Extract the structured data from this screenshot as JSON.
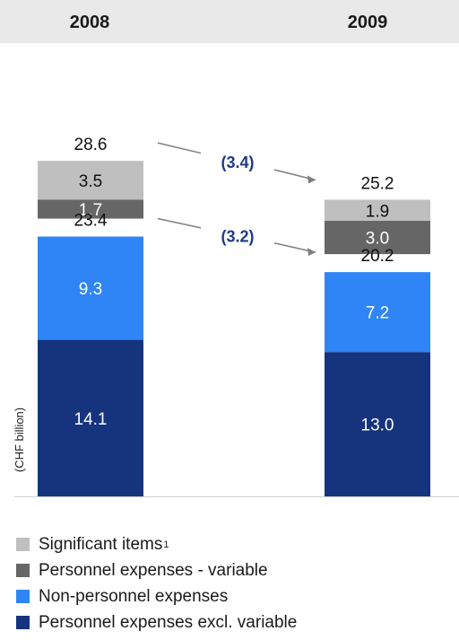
{
  "colors": {
    "significant": "#bfbfbf",
    "pers_var": "#666666",
    "non_personnel": "#2f85f5",
    "personnel_excl": "#16337e",
    "change_text": "#1f3a8a",
    "arrow": "#7f7f7f",
    "header_bg": "#e9e9e9"
  },
  "chart_data": {
    "type": "bar",
    "stacked": true,
    "categories": [
      "2008",
      "2009"
    ],
    "unit_label": "(CHF billion)",
    "series": [
      {
        "name": "Personnel expenses excl. variable",
        "values": [
          14.1,
          13.0
        ],
        "labels": [
          "14.1",
          "13.0"
        ],
        "color_key": "personnel_excl",
        "label_color": "#ffffff"
      },
      {
        "name": "Non-personnel expenses",
        "values": [
          9.3,
          7.2
        ],
        "labels": [
          "9.3",
          "7.2"
        ],
        "color_key": "non_personnel",
        "label_color": "#ffffff"
      },
      {
        "name": "Personnel expenses - variable",
        "values": [
          1.7,
          3.0
        ],
        "labels": [
          "1.7",
          "3.0"
        ],
        "color_key": "pers_var",
        "label_color": "#ffffff"
      },
      {
        "name": "Significant items",
        "values": [
          3.5,
          1.9
        ],
        "labels": [
          "3.5",
          "1.9"
        ],
        "color_key": "significant",
        "label_color": "#111111"
      }
    ],
    "subtotals": [
      {
        "values": [
          23.4,
          20.2
        ],
        "labels": [
          "23.4",
          "20.2"
        ],
        "change": "(3.2)"
      },
      {
        "values": [
          28.6,
          25.2
        ],
        "labels": [
          "28.6",
          "25.2"
        ],
        "change": "(3.4)"
      }
    ]
  },
  "legend": [
    {
      "label": "Significant items",
      "footnote": "1",
      "color_key": "significant"
    },
    {
      "label": "Personnel expenses - variable",
      "footnote": "",
      "color_key": "pers_var"
    },
    {
      "label": "Non-personnel expenses",
      "footnote": "",
      "color_key": "non_personnel"
    },
    {
      "label": "Personnel expenses excl. variable",
      "footnote": "",
      "color_key": "personnel_excl"
    }
  ]
}
